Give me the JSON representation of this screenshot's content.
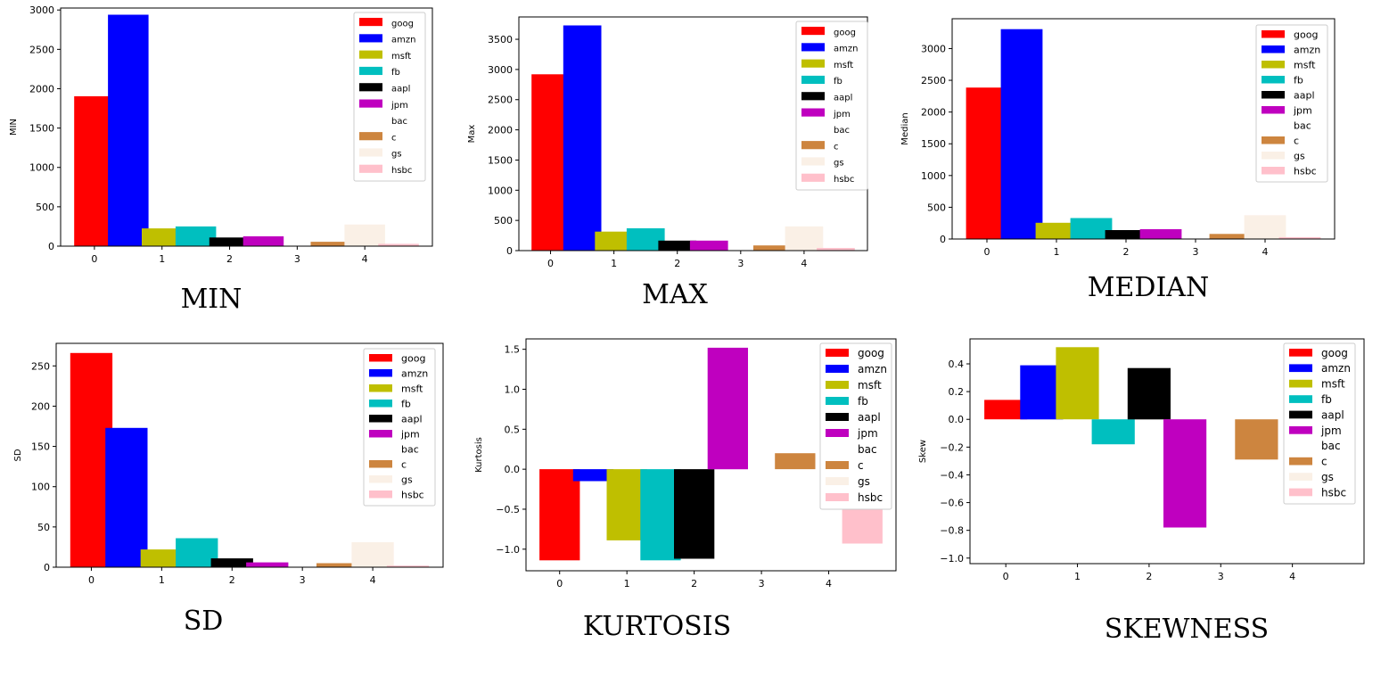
{
  "legend_labels": [
    "goog",
    "amzn",
    "msft",
    "fb",
    "aapl",
    "jpm",
    "bac",
    "c",
    "gs",
    "hsbc"
  ],
  "colors": [
    "#ff0000",
    "#0000ff",
    "#bfbf00",
    "#00bfbf",
    "#000000",
    "#bf00bf",
    "#ffffff",
    "#cd853f",
    "#faf0e6",
    "#ffc0cb"
  ],
  "chart_data": [
    {
      "type": "bar",
      "title": "MIN",
      "ylabel": "MIN",
      "x_ticks": [
        "0",
        "1",
        "2",
        "3",
        "4"
      ],
      "y_ticks": [
        "0",
        "500",
        "1000",
        "1500",
        "2000",
        "2500",
        "3000"
      ],
      "ylim": [
        0,
        3025
      ],
      "values": [
        1905,
        2940,
        225,
        250,
        110,
        125,
        0,
        55,
        275,
        30
      ]
    },
    {
      "type": "bar",
      "title": "MAX",
      "ylabel": "Max",
      "x_ticks": [
        "0",
        "1",
        "2",
        "3",
        "4"
      ],
      "y_ticks": [
        "0",
        "500",
        "1000",
        "1500",
        "2000",
        "2500",
        "3000",
        "3500"
      ],
      "ylim": [
        0,
        3870
      ],
      "values": [
        2920,
        3730,
        315,
        370,
        165,
        165,
        0,
        85,
        400,
        45
      ]
    },
    {
      "type": "bar",
      "title": "MEDIAN",
      "ylabel": "Median",
      "x_ticks": [
        "0",
        "1",
        "2",
        "3",
        "4"
      ],
      "y_ticks": [
        "0",
        "500",
        "1000",
        "1500",
        "2000",
        "2500",
        "3000"
      ],
      "ylim": [
        0,
        3470
      ],
      "values": [
        2385,
        3305,
        255,
        330,
        140,
        155,
        0,
        80,
        375,
        30
      ]
    },
    {
      "type": "bar",
      "title": "SD",
      "ylabel": "SD",
      "x_ticks": [
        "0",
        "1",
        "2",
        "3",
        "4"
      ],
      "y_ticks": [
        "0",
        "50",
        "100",
        "150",
        "200",
        "250"
      ],
      "ylim": [
        0,
        278
      ],
      "values": [
        266,
        173,
        22,
        36,
        11,
        6,
        0,
        5,
        31,
        2
      ]
    },
    {
      "type": "bar",
      "title": "KURTOSIS",
      "ylabel": "Kurtosis",
      "x_ticks": [
        "0",
        "1",
        "2",
        "3",
        "4"
      ],
      "y_ticks": [
        "−1.0",
        "−0.5",
        "0.0",
        "0.5",
        "1.0",
        "1.5"
      ],
      "ylim": [
        -1.27,
        1.63
      ],
      "values": [
        -1.14,
        -0.15,
        -0.89,
        -1.14,
        -1.12,
        1.52,
        0,
        0.2,
        0,
        -0.93
      ]
    },
    {
      "type": "bar",
      "title": "SKEWNESS",
      "ylabel": "Skew",
      "x_ticks": [
        "0",
        "1",
        "2",
        "3",
        "4"
      ],
      "y_ticks": [
        "−1.0",
        "−0.8",
        "−0.6",
        "−0.4",
        "−0.2",
        "0.0",
        "0.2",
        "0.4"
      ],
      "ylim": [
        -1.04,
        0.58
      ],
      "values": [
        0.14,
        0.39,
        0.52,
        -0.18,
        0.37,
        -0.78,
        0,
        -0.29,
        0,
        0
      ]
    }
  ]
}
